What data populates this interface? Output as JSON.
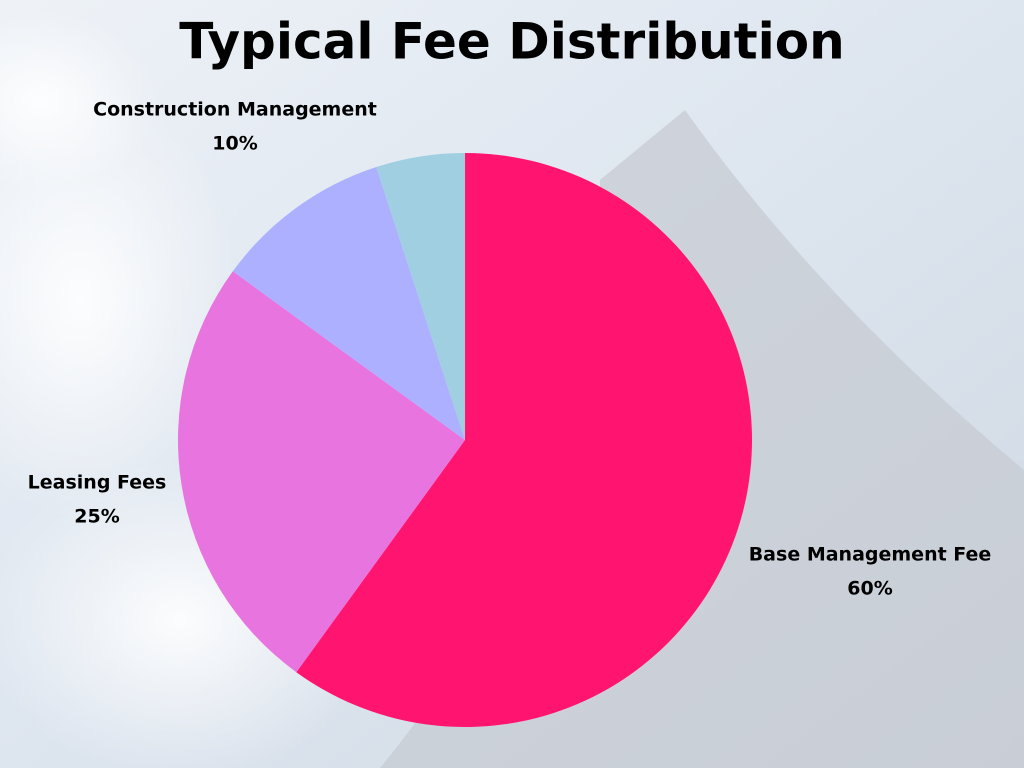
{
  "chart_data": {
    "type": "pie",
    "title": "Typical Fee Distribution",
    "categories": [
      "Base Management Fee",
      "Leasing Fees",
      "Construction Management",
      null
    ],
    "values": [
      60,
      25,
      10,
      5
    ],
    "value_labels": [
      "60%",
      "25%",
      "10%",
      null
    ],
    "colors": [
      "#ff1470",
      "#e874e0",
      "#adb0ff",
      "#9fcfe0"
    ]
  }
}
